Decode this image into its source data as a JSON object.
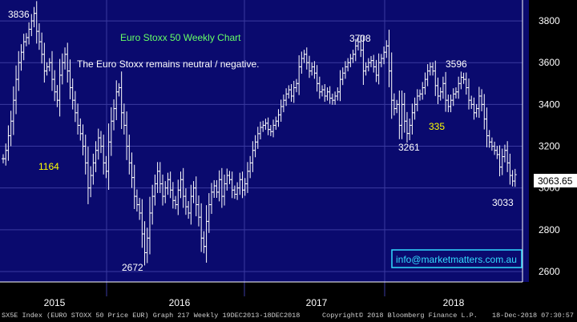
{
  "chart_data": {
    "type": "ohlc",
    "title": "Euro Stoxx 50 Weekly Chart",
    "subtitle": "The Euro Stoxx remains neutral / negative.",
    "ylim": [
      2550,
      3900
    ],
    "y_ticks": [
      2600,
      2800,
      3000,
      3200,
      3400,
      3600,
      3800
    ],
    "x_year_labels": [
      "2015",
      "2016",
      "2017",
      "2018"
    ],
    "last_price": "3063.65",
    "watermark": "info@marketmatters.com.au",
    "annotations": [
      {
        "text": "3836",
        "x": "2015-01",
        "y": 3836,
        "color": "#ffffff"
      },
      {
        "text": "1164",
        "x": "2015-10",
        "y": 3140,
        "color": "#ffff00"
      },
      {
        "text": "2672",
        "x": "2016-02",
        "y": 2660,
        "color": "#ffffff"
      },
      {
        "text": "3708",
        "x": "2017-11",
        "y": 3708,
        "color": "#ffffff"
      },
      {
        "text": "3261",
        "x": "2018-03",
        "y": 3261,
        "color": "#ffffff"
      },
      {
        "text": "335",
        "x": "2018-05",
        "y": 3330,
        "color": "#ffff00"
      },
      {
        "text": "3596",
        "x": "2018-07",
        "y": 3596,
        "color": "#ffffff"
      },
      {
        "text": "3033",
        "x": "2018-12",
        "y": 3033,
        "color": "#ffffff"
      }
    ],
    "series": [
      {
        "values": [
          3140,
          3180,
          3250,
          3320,
          3420,
          3520,
          3600,
          3650,
          3700,
          3720,
          3760,
          3800,
          3836,
          3750,
          3700,
          3640,
          3560,
          3580,
          3600,
          3520,
          3460,
          3420,
          3540,
          3600,
          3640,
          3560,
          3480,
          3420,
          3360,
          3300,
          3260,
          3200,
          3120,
          3000,
          3060,
          3120,
          3180,
          3240,
          3200,
          3120,
          3080,
          3220,
          3320,
          3380,
          3460,
          3480,
          3360,
          3300,
          3200,
          3120,
          3050,
          2960,
          2920,
          2880,
          2780,
          2690,
          2760,
          2880,
          2960,
          3020,
          3080,
          3020,
          2960,
          3000,
          3040,
          2990,
          2940,
          2920,
          2990,
          3040,
          2960,
          2910,
          2880,
          2960,
          3000,
          2920,
          2860,
          2760,
          2720,
          2840,
          2920,
          2980,
          3010,
          2980,
          3040,
          2960,
          3020,
          3060,
          3040,
          2990,
          2970,
          3000,
          3040,
          2990,
          3020,
          3080,
          3120,
          3180,
          3220,
          3260,
          3290,
          3300,
          3310,
          3280,
          3270,
          3300,
          3320,
          3350,
          3390,
          3420,
          3450,
          3470,
          3440,
          3480,
          3500,
          3580,
          3620,
          3640,
          3600,
          3560,
          3580,
          3550,
          3500,
          3460,
          3470,
          3440,
          3460,
          3430,
          3420,
          3440,
          3460,
          3520,
          3550,
          3580,
          3600,
          3620,
          3640,
          3680,
          3700,
          3660,
          3560,
          3580,
          3600,
          3610,
          3580,
          3540,
          3600,
          3620,
          3650,
          3680,
          3560,
          3420,
          3380,
          3400,
          3300,
          3400,
          3320,
          3261,
          3300,
          3360,
          3400,
          3440,
          3450,
          3480,
          3520,
          3560,
          3580,
          3560,
          3490,
          3440,
          3460,
          3500,
          3420,
          3390,
          3420,
          3450,
          3460,
          3500,
          3530,
          3520,
          3480,
          3420,
          3400,
          3360,
          3380,
          3440,
          3400,
          3330,
          3250,
          3220,
          3200,
          3180,
          3160,
          3100,
          3150,
          3180,
          3120,
          3060,
          3033,
          3063.65
        ]
      }
    ]
  },
  "axes": {
    "y_tick_labels": [
      "3800",
      "3600",
      "3400",
      "3200",
      "3000",
      "2800",
      "2600"
    ]
  },
  "footer": {
    "left": "SX5E Index (EURO STOXX 50 Price EUR) Graph 217  Weekly 19DEC2013-18DEC2018",
    "middle": "Copyright© 2018 Bloomberg Finance L.P.",
    "right": "18-Dec-2018 07:30:57"
  },
  "colors": {
    "background": "#000000",
    "plot_background": "#0a0a6e",
    "grid": "#3a3aa0",
    "bar": "#ffffff",
    "title": "#66ff66",
    "highlight": "#ffff00",
    "watermark": "#33ddff"
  }
}
